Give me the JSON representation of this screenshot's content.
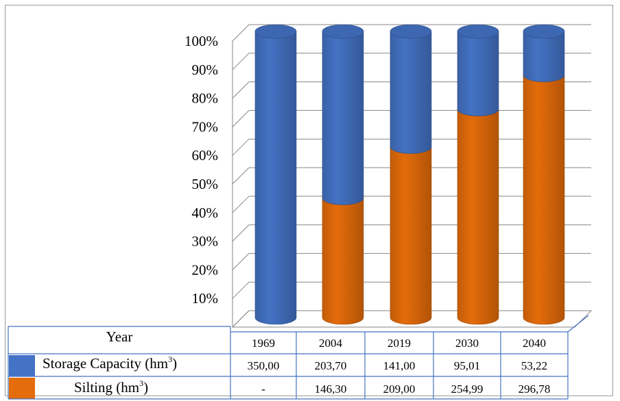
{
  "chart_data": {
    "type": "bar",
    "stacked": "percent",
    "title": "",
    "ylabel": "",
    "ylim": [
      0,
      100
    ],
    "y_ticks": [
      "",
      "10%",
      "20%",
      "30%",
      "40%",
      "50%",
      "60%",
      "70%",
      "80%",
      "90%",
      "100%"
    ],
    "categories": [
      "1969",
      "2004",
      "2019",
      "2030",
      "2040"
    ],
    "series": [
      {
        "name": "Silting",
        "unit": "hm",
        "unit_exp": "3",
        "color": "#e46c0a",
        "values": [
          0,
          146.3,
          209.0,
          254.99,
          296.78
        ],
        "labels": [
          "-",
          "146,30",
          "209,00",
          "254,99",
          "296,78"
        ]
      },
      {
        "name": "Storage Capacity",
        "unit": "hm",
        "unit_exp": "3",
        "color": "#4472c4",
        "values": [
          350.0,
          203.7,
          141.0,
          95.01,
          53.22
        ],
        "labels": [
          "350,00",
          "203,70",
          "141,00",
          "95,01",
          "53,22"
        ]
      }
    ],
    "table_header": "Year",
    "grid": true,
    "legend": "data-table"
  }
}
